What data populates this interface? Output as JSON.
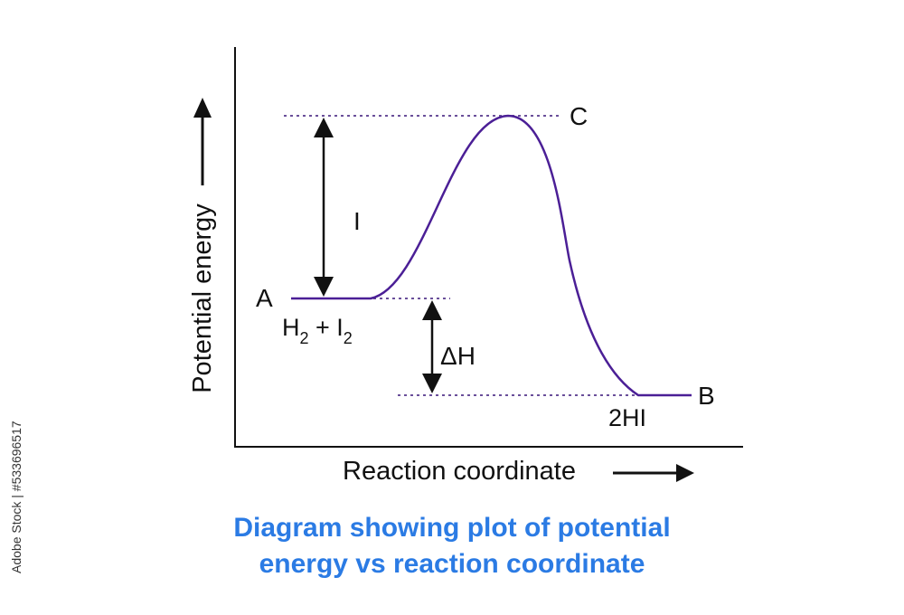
{
  "diagram": {
    "y_axis_label": "Potential energy",
    "x_axis_label": "Reaction coordinate",
    "points": {
      "A": "A",
      "B": "B",
      "C": "C"
    },
    "reactants": {
      "base_1": "H",
      "sub_1": "2",
      "plus": " + I",
      "sub_2": "2"
    },
    "products": "2HI",
    "activation_energy_label": "I",
    "enthalpy_change_label": "ΔH"
  },
  "caption": {
    "line1": "Diagram showing plot of potential",
    "line2": "energy vs reaction coordinate"
  },
  "stock_id": "Adobe Stock | #533696517",
  "colors": {
    "curve": "#4b1f96",
    "dotted_line": "#6a4f9a",
    "axis": "#111111",
    "caption": "#2b7be4"
  }
}
